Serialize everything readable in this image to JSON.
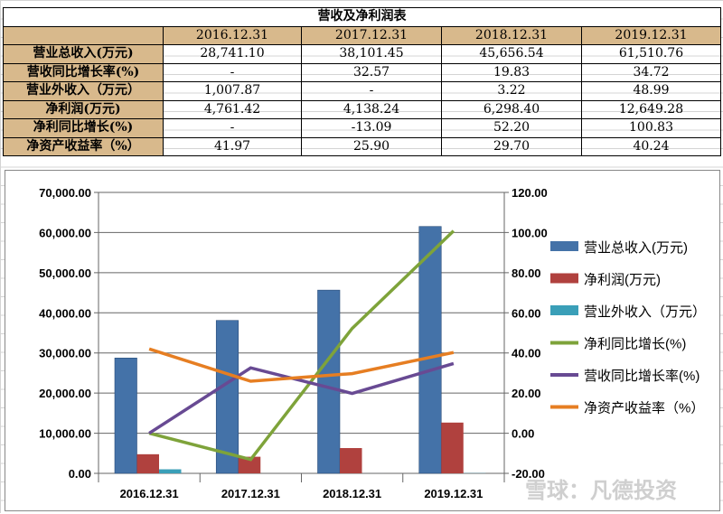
{
  "table": {
    "title": "营收及净利润表",
    "headers": [
      "",
      "2016.12.31",
      "2017.12.31",
      "2018.12.31",
      "2019.12.31"
    ],
    "rows": [
      {
        "label": "营业总收入(万元)",
        "values": [
          "28,741.10",
          "38,101.45",
          "45,656.54",
          "61,510.76"
        ]
      },
      {
        "label": "营收同比增长率(%)",
        "values": [
          "-",
          "32.57",
          "19.83",
          "34.72"
        ]
      },
      {
        "label": "营业外收入（万元）",
        "values": [
          "1,007.87",
          "-",
          "3.22",
          "48.99"
        ]
      },
      {
        "label": "净利润(万元)",
        "values": [
          "4,761.42",
          "4,138.24",
          "6,298.40",
          "12,649.28"
        ]
      },
      {
        "label": "净利同比增长(%)",
        "values": [
          "-",
          "-13.09",
          "52.20",
          "100.83"
        ]
      },
      {
        "label": "净资产收益率（%）",
        "values": [
          "41.97",
          "25.90",
          "29.70",
          "40.24"
        ]
      }
    ]
  },
  "chart_data": {
    "type": "bar+line",
    "categories": [
      "2016.12.31",
      "2017.12.31",
      "2018.12.31",
      "2019.12.31"
    ],
    "left_axis": {
      "ylim": [
        0,
        70000
      ],
      "ticks": [
        "0.00",
        "10,000.00",
        "20,000.00",
        "30,000.00",
        "40,000.00",
        "50,000.00",
        "60,000.00",
        "70,000.00"
      ]
    },
    "right_axis": {
      "ylim": [
        -20,
        120
      ],
      "ticks": [
        "-20.00",
        "0.00",
        "20.00",
        "40.00",
        "60.00",
        "80.00",
        "100.00",
        "120.00"
      ]
    },
    "grid": true,
    "legend_position": "right",
    "bar_series": [
      {
        "name": "营业总收入(万元)",
        "values": [
          28741.1,
          38101.45,
          45656.54,
          61510.76
        ],
        "color": "#4472a8"
      },
      {
        "name": "净利润(万元)",
        "values": [
          4761.42,
          4138.24,
          6298.4,
          12649.28
        ],
        "color": "#b0413e"
      },
      {
        "name": "营业外收入（万元）",
        "values": [
          1007.87,
          0,
          3.22,
          48.99
        ],
        "color": "#3a9fb8"
      }
    ],
    "line_series": [
      {
        "name": "净利同比增长(%)",
        "values": [
          0,
          -13.09,
          52.2,
          100.83
        ],
        "color": "#7ea33a"
      },
      {
        "name": "营收同比增长率(%)",
        "values": [
          0,
          32.57,
          19.83,
          34.72
        ],
        "color": "#684a93"
      },
      {
        "name": "净资产收益率（%）",
        "values": [
          41.97,
          25.9,
          29.7,
          40.24
        ],
        "color": "#e67e22"
      }
    ]
  },
  "watermark": "雪球：凡德投资"
}
